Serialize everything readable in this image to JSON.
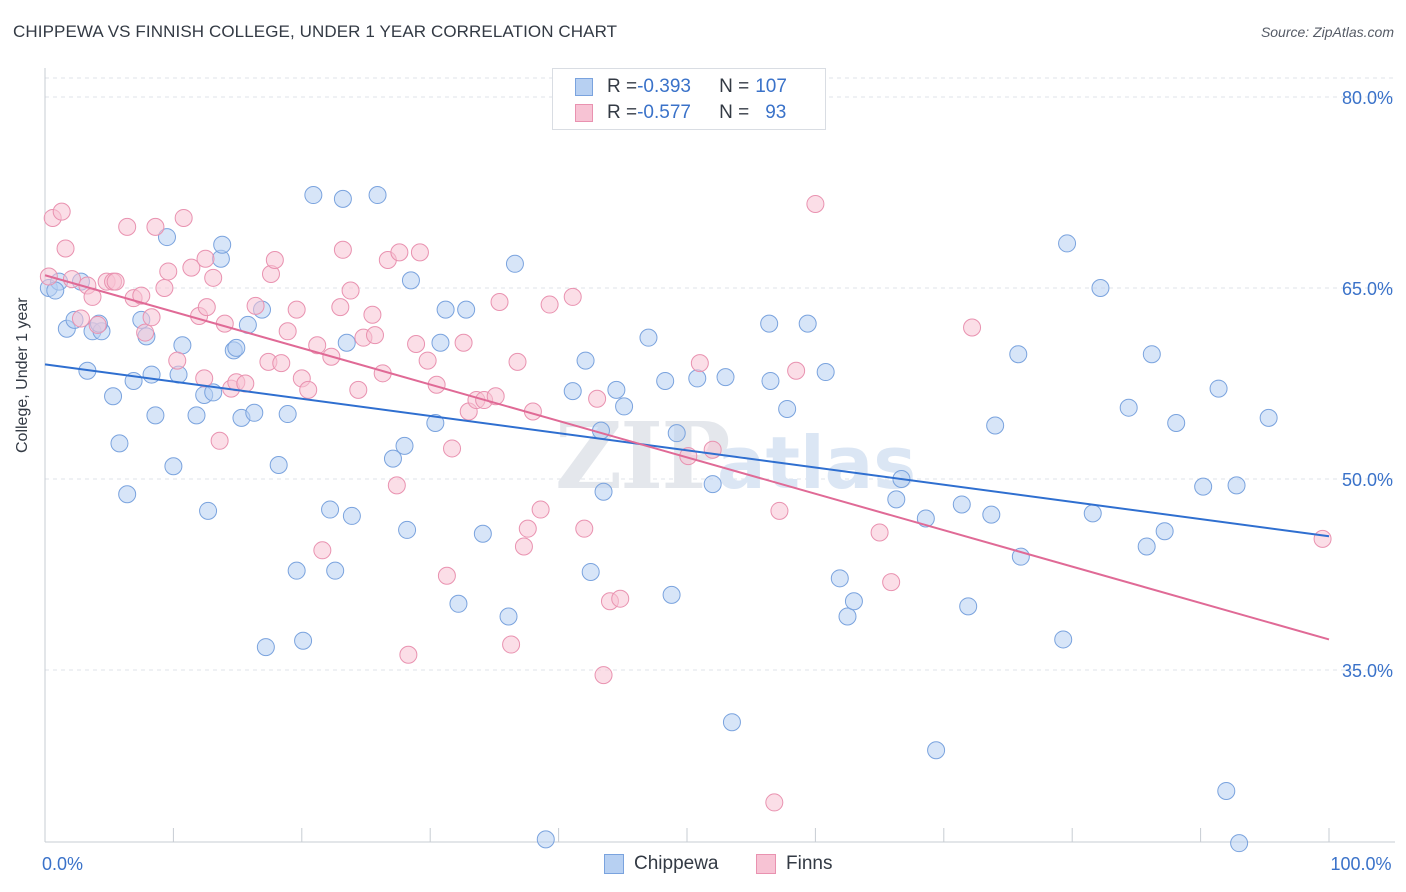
{
  "title": "CHIPPEWA VS FINNISH COLLEGE, UNDER 1 YEAR CORRELATION CHART",
  "source_prefix": "Source: ",
  "source_name": "ZipAtlas.com",
  "watermark": {
    "zip": "ZIP",
    "atlas": "atlas"
  },
  "legend": {
    "rows": [
      {
        "r_label": "R = ",
        "r_value": "-0.393",
        "n_label": "N = ",
        "n_value": "107"
      },
      {
        "r_label": "R = ",
        "r_value": "-0.577",
        "n_label": "N = ",
        "n_value": "93"
      }
    ]
  },
  "colors": {
    "chippewa_fill": "#b7d0f2",
    "chippewa_edge": "#7aa3de",
    "chippewa_line": "#2f6fd0",
    "finns_fill": "#f7c3d4",
    "finns_edge": "#e992b0",
    "finns_line": "#e06a96",
    "tick_label": "#3a72c9",
    "grid": "#dfe3e8"
  },
  "chart_data": {
    "type": "scatter",
    "title": "CHIPPEWA VS FINNISH COLLEGE, UNDER 1 YEAR CORRELATION CHART",
    "xlabel": "",
    "ylabel": "College, Under 1 year",
    "xlim": [
      0,
      100
    ],
    "ylim": [
      20,
      82
    ],
    "x_tick_labels": [
      {
        "value": 0,
        "label": "0.0%"
      },
      {
        "value": 100,
        "label": "100.0%"
      }
    ],
    "y_tick_labels": [
      {
        "value": 80,
        "label": "80.0%"
      },
      {
        "value": 65,
        "label": "65.0%"
      },
      {
        "value": 50,
        "label": "50.0%"
      },
      {
        "value": 35,
        "label": "35.0%"
      }
    ],
    "grid": "horizontal dashed",
    "legend_placement": "top-center",
    "series": [
      {
        "name": "Chippewa",
        "r": -0.393,
        "n": 107,
        "trend": {
          "x": [
            0,
            100
          ],
          "y": [
            59.0,
            45.5
          ]
        },
        "points": [
          [
            0.3,
            65.0
          ],
          [
            1.1,
            65.5
          ],
          [
            0.8,
            64.8
          ],
          [
            1.7,
            61.8
          ],
          [
            2.3,
            62.5
          ],
          [
            2.8,
            65.5
          ],
          [
            3.3,
            58.5
          ],
          [
            3.7,
            61.6
          ],
          [
            4.4,
            61.6
          ],
          [
            4.2,
            62.2
          ],
          [
            5.3,
            56.5
          ],
          [
            5.8,
            52.8
          ],
          [
            6.4,
            48.8
          ],
          [
            6.9,
            57.7
          ],
          [
            7.5,
            62.5
          ],
          [
            7.9,
            61.2
          ],
          [
            8.3,
            58.2
          ],
          [
            8.6,
            55.0
          ],
          [
            9.5,
            69.0
          ],
          [
            10.0,
            51.0
          ],
          [
            10.4,
            58.2
          ],
          [
            10.7,
            60.5
          ],
          [
            11.8,
            55.0
          ],
          [
            12.4,
            56.6
          ],
          [
            12.7,
            47.5
          ],
          [
            13.1,
            56.8
          ],
          [
            13.7,
            67.3
          ],
          [
            13.8,
            68.4
          ],
          [
            14.7,
            60.1
          ],
          [
            14.9,
            60.3
          ],
          [
            15.3,
            54.8
          ],
          [
            15.8,
            62.1
          ],
          [
            16.3,
            55.2
          ],
          [
            16.9,
            63.3
          ],
          [
            17.2,
            36.8
          ],
          [
            18.2,
            51.1
          ],
          [
            18.9,
            55.1
          ],
          [
            19.6,
            42.8
          ],
          [
            20.1,
            37.3
          ],
          [
            20.9,
            72.3
          ],
          [
            22.2,
            47.6
          ],
          [
            22.6,
            42.8
          ],
          [
            23.2,
            72.0
          ],
          [
            23.5,
            60.7
          ],
          [
            23.9,
            47.1
          ],
          [
            25.9,
            72.3
          ],
          [
            27.1,
            51.6
          ],
          [
            28.0,
            52.6
          ],
          [
            28.2,
            46.0
          ],
          [
            28.5,
            65.6
          ],
          [
            30.4,
            54.4
          ],
          [
            30.8,
            60.7
          ],
          [
            31.2,
            63.3
          ],
          [
            32.2,
            40.2
          ],
          [
            32.8,
            63.3
          ],
          [
            34.1,
            45.7
          ],
          [
            36.1,
            39.2
          ],
          [
            36.6,
            66.9
          ],
          [
            39.0,
            21.7
          ],
          [
            41.1,
            56.9
          ],
          [
            42.1,
            59.3
          ],
          [
            42.5,
            42.7
          ],
          [
            43.3,
            53.8
          ],
          [
            43.5,
            49.0
          ],
          [
            44.5,
            57.0
          ],
          [
            45.1,
            55.7
          ],
          [
            47.0,
            61.1
          ],
          [
            48.3,
            57.7
          ],
          [
            48.8,
            40.9
          ],
          [
            49.2,
            53.6
          ],
          [
            50.8,
            57.9
          ],
          [
            52.0,
            49.6
          ],
          [
            53.0,
            58.0
          ],
          [
            53.5,
            30.9
          ],
          [
            56.4,
            62.2
          ],
          [
            56.5,
            57.7
          ],
          [
            57.8,
            55.5
          ],
          [
            59.4,
            62.2
          ],
          [
            60.8,
            58.4
          ],
          [
            61.9,
            42.2
          ],
          [
            62.5,
            39.2
          ],
          [
            63.0,
            40.4
          ],
          [
            66.3,
            48.4
          ],
          [
            66.7,
            50.0
          ],
          [
            68.6,
            46.9
          ],
          [
            69.4,
            28.7
          ],
          [
            71.4,
            48.0
          ],
          [
            71.9,
            40.0
          ],
          [
            73.7,
            47.2
          ],
          [
            74.0,
            54.2
          ],
          [
            75.8,
            59.8
          ],
          [
            76.0,
            43.9
          ],
          [
            79.3,
            37.4
          ],
          [
            79.6,
            68.5
          ],
          [
            81.6,
            47.3
          ],
          [
            82.2,
            65.0
          ],
          [
            84.4,
            55.6
          ],
          [
            85.8,
            44.7
          ],
          [
            86.2,
            59.8
          ],
          [
            87.2,
            45.9
          ],
          [
            88.1,
            54.4
          ],
          [
            90.2,
            49.4
          ],
          [
            91.4,
            57.1
          ],
          [
            92.0,
            25.5
          ],
          [
            92.8,
            49.5
          ],
          [
            93.0,
            21.4
          ],
          [
            95.3,
            54.8
          ]
        ]
      },
      {
        "name": "Finns",
        "r": -0.577,
        "n": 93,
        "trend": {
          "x": [
            0,
            100
          ],
          "y": [
            66.0,
            37.4
          ]
        },
        "points": [
          [
            0.3,
            65.9
          ],
          [
            0.6,
            70.5
          ],
          [
            1.3,
            71.0
          ],
          [
            1.6,
            68.1
          ],
          [
            2.1,
            65.7
          ],
          [
            2.8,
            62.6
          ],
          [
            3.3,
            65.2
          ],
          [
            3.7,
            64.3
          ],
          [
            4.1,
            62.1
          ],
          [
            4.8,
            65.5
          ],
          [
            5.3,
            65.5
          ],
          [
            5.5,
            65.5
          ],
          [
            6.4,
            69.8
          ],
          [
            6.9,
            64.2
          ],
          [
            7.5,
            64.4
          ],
          [
            7.8,
            61.5
          ],
          [
            8.3,
            62.7
          ],
          [
            8.6,
            69.8
          ],
          [
            9.3,
            65.0
          ],
          [
            9.6,
            66.3
          ],
          [
            10.3,
            59.3
          ],
          [
            10.8,
            70.5
          ],
          [
            11.4,
            66.6
          ],
          [
            12.0,
            62.8
          ],
          [
            12.6,
            63.5
          ],
          [
            12.5,
            67.3
          ],
          [
            13.1,
            65.8
          ],
          [
            13.6,
            53.0
          ],
          [
            14.0,
            62.2
          ],
          [
            14.5,
            57.1
          ],
          [
            14.9,
            57.6
          ],
          [
            15.6,
            57.5
          ],
          [
            16.4,
            63.6
          ],
          [
            17.4,
            59.2
          ],
          [
            17.6,
            66.1
          ],
          [
            17.9,
            67.2
          ],
          [
            18.4,
            59.1
          ],
          [
            18.9,
            61.6
          ],
          [
            19.6,
            63.3
          ],
          [
            20.0,
            57.9
          ],
          [
            20.5,
            57.0
          ],
          [
            21.2,
            60.5
          ],
          [
            21.6,
            44.4
          ],
          [
            22.3,
            59.6
          ],
          [
            23.0,
            63.5
          ],
          [
            23.2,
            68.0
          ],
          [
            23.8,
            64.8
          ],
          [
            24.4,
            57.0
          ],
          [
            24.8,
            61.1
          ],
          [
            25.5,
            62.9
          ],
          [
            25.7,
            61.3
          ],
          [
            26.3,
            58.3
          ],
          [
            26.7,
            67.2
          ],
          [
            27.4,
            49.5
          ],
          [
            27.6,
            67.8
          ],
          [
            28.3,
            36.2
          ],
          [
            28.9,
            60.6
          ],
          [
            29.2,
            67.8
          ],
          [
            29.8,
            59.3
          ],
          [
            30.5,
            57.4
          ],
          [
            31.3,
            42.4
          ],
          [
            31.7,
            52.4
          ],
          [
            32.6,
            60.7
          ],
          [
            33.0,
            55.3
          ],
          [
            33.6,
            56.2
          ],
          [
            34.2,
            56.2
          ],
          [
            35.1,
            56.5
          ],
          [
            35.4,
            63.9
          ],
          [
            36.3,
            37.0
          ],
          [
            36.8,
            59.2
          ],
          [
            37.3,
            44.7
          ],
          [
            37.6,
            46.1
          ],
          [
            38.0,
            55.3
          ],
          [
            38.6,
            47.6
          ],
          [
            39.3,
            63.7
          ],
          [
            41.1,
            64.3
          ],
          [
            42.0,
            46.1
          ],
          [
            43.0,
            56.3
          ],
          [
            43.5,
            34.6
          ],
          [
            44.0,
            40.4
          ],
          [
            44.8,
            40.6
          ],
          [
            50.1,
            51.8
          ],
          [
            51.0,
            59.1
          ],
          [
            52.0,
            52.3
          ],
          [
            56.8,
            24.6
          ],
          [
            57.2,
            47.5
          ],
          [
            58.5,
            58.5
          ],
          [
            60.0,
            71.6
          ],
          [
            65.0,
            45.8
          ],
          [
            65.9,
            41.9
          ],
          [
            72.2,
            61.9
          ],
          [
            99.5,
            45.3
          ],
          [
            12.4,
            57.9
          ]
        ]
      }
    ]
  },
  "bottom_legend": [
    {
      "label": "Chippewa"
    },
    {
      "label": "Finns"
    }
  ]
}
